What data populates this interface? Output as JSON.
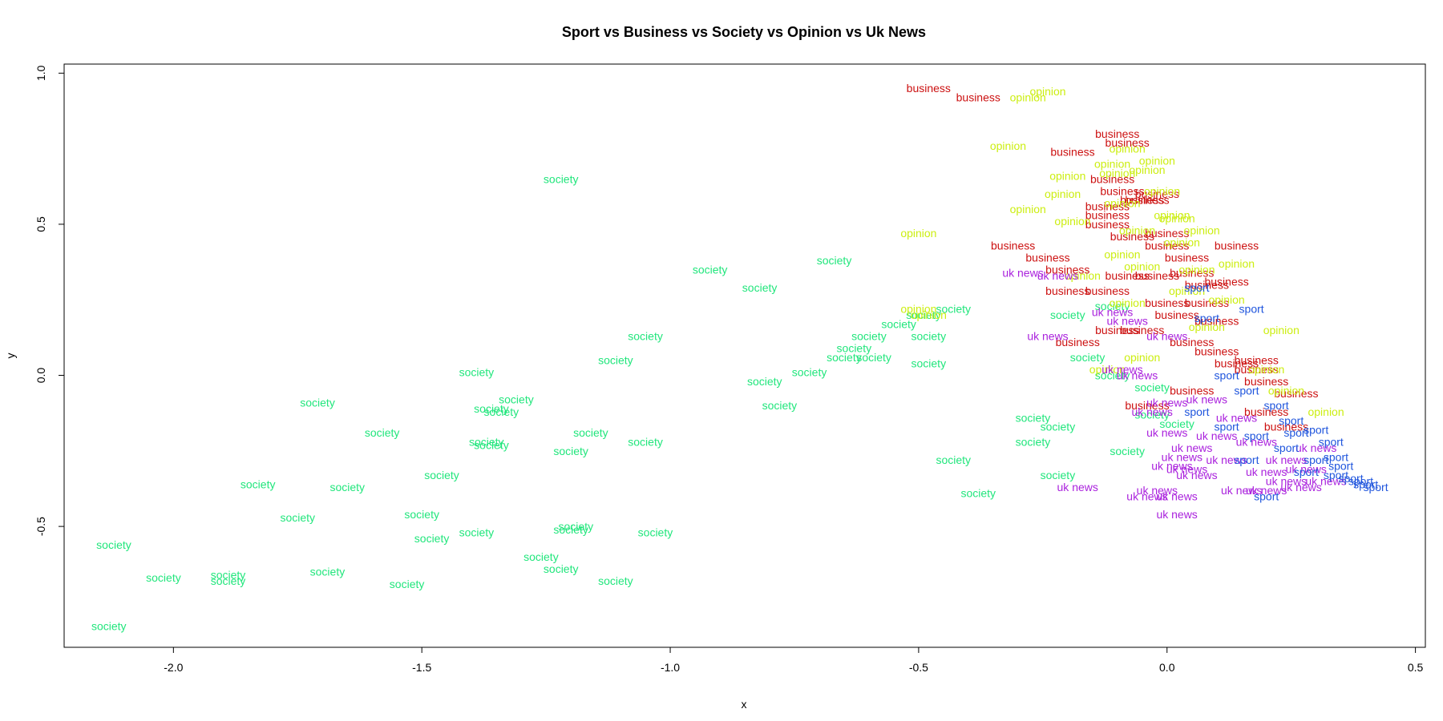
{
  "chart_data": {
    "type": "scatter",
    "title": "Sport vs Business vs Society vs Opinion vs Uk News",
    "xlabel": "x",
    "ylabel": "y",
    "xlim": [
      -2.22,
      0.52
    ],
    "ylim": [
      -0.9,
      1.03
    ],
    "x_ticks": [
      -2.0,
      -1.5,
      -1.0,
      -0.5,
      0.0,
      0.5
    ],
    "y_ticks": [
      -0.5,
      0.0,
      0.5,
      1.0
    ],
    "x_tick_labels": [
      "-2.0",
      "-1.5",
      "-1.0",
      "-0.5",
      "0.0",
      "0.5"
    ],
    "y_tick_labels": [
      "-0.5",
      "0.0",
      "0.5",
      "1.0"
    ],
    "grid": false,
    "legend": "none",
    "marker": "text-label",
    "series": [
      {
        "label": "society",
        "color": "#21e67c",
        "points": [
          [
            -1.22,
            0.65
          ],
          [
            -0.92,
            0.35
          ],
          [
            -0.67,
            0.38
          ],
          [
            -0.82,
            0.29
          ],
          [
            -1.05,
            0.13
          ],
          [
            -1.11,
            0.05
          ],
          [
            -1.39,
            0.01
          ],
          [
            -1.71,
            -0.09
          ],
          [
            -1.31,
            -0.08
          ],
          [
            -1.36,
            -0.11
          ],
          [
            -1.34,
            -0.12
          ],
          [
            -1.58,
            -0.19
          ],
          [
            -1.16,
            -0.19
          ],
          [
            -1.05,
            -0.22
          ],
          [
            -1.37,
            -0.22
          ],
          [
            -1.36,
            -0.23
          ],
          [
            -1.2,
            -0.25
          ],
          [
            -1.83,
            -0.36
          ],
          [
            -1.65,
            -0.37
          ],
          [
            -1.46,
            -0.33
          ],
          [
            -1.75,
            -0.47
          ],
          [
            -1.5,
            -0.46
          ],
          [
            -1.19,
            -0.5
          ],
          [
            -1.2,
            -0.51
          ],
          [
            -1.03,
            -0.52
          ],
          [
            -1.39,
            -0.52
          ],
          [
            -1.48,
            -0.54
          ],
          [
            -2.12,
            -0.56
          ],
          [
            -1.26,
            -0.6
          ],
          [
            -1.22,
            -0.64
          ],
          [
            -2.02,
            -0.67
          ],
          [
            -1.89,
            -0.66
          ],
          [
            -1.89,
            -0.68
          ],
          [
            -1.69,
            -0.65
          ],
          [
            -1.53,
            -0.69
          ],
          [
            -1.11,
            -0.68
          ],
          [
            -2.13,
            -0.83
          ],
          [
            -0.54,
            0.17
          ],
          [
            -0.6,
            0.13
          ],
          [
            -0.63,
            0.09
          ],
          [
            -0.65,
            0.06
          ],
          [
            -0.59,
            0.06
          ],
          [
            -0.72,
            0.01
          ],
          [
            -0.81,
            -0.02
          ],
          [
            -0.78,
            -0.1
          ],
          [
            -0.48,
            0.13
          ],
          [
            -0.48,
            0.04
          ],
          [
            -0.43,
            0.22
          ],
          [
            -0.49,
            0.2
          ],
          [
            -0.27,
            -0.14
          ],
          [
            -0.22,
            -0.17
          ],
          [
            -0.27,
            -0.22
          ],
          [
            -0.43,
            -0.28
          ],
          [
            -0.22,
            -0.33
          ],
          [
            -0.38,
            -0.39
          ],
          [
            -0.08,
            -0.25
          ],
          [
            -0.16,
            0.06
          ],
          [
            -0.2,
            0.2
          ],
          [
            -0.11,
            0.23
          ],
          [
            -0.03,
            -0.04
          ],
          [
            -0.03,
            -0.13
          ],
          [
            0.02,
            -0.16
          ],
          [
            -0.11,
            0.0
          ]
        ]
      },
      {
        "label": "business",
        "color": "#cc1111",
        "points": [
          [
            -0.48,
            0.95
          ],
          [
            -0.38,
            0.92
          ],
          [
            -0.1,
            0.8
          ],
          [
            -0.08,
            0.77
          ],
          [
            -0.19,
            0.74
          ],
          [
            -0.11,
            0.65
          ],
          [
            -0.09,
            0.61
          ],
          [
            -0.02,
            0.6
          ],
          [
            -0.05,
            0.58
          ],
          [
            -0.12,
            0.56
          ],
          [
            -0.04,
            0.58
          ],
          [
            -0.12,
            0.53
          ],
          [
            -0.12,
            0.5
          ],
          [
            0.0,
            0.47
          ],
          [
            -0.31,
            0.43
          ],
          [
            -0.24,
            0.39
          ],
          [
            -0.2,
            0.35
          ],
          [
            -0.08,
            0.33
          ],
          [
            -0.02,
            0.33
          ],
          [
            -0.12,
            0.28
          ],
          [
            -0.2,
            0.28
          ],
          [
            0.05,
            0.34
          ],
          [
            0.12,
            0.31
          ],
          [
            0.08,
            0.24
          ],
          [
            0.0,
            0.24
          ],
          [
            0.02,
            0.2
          ],
          [
            0.1,
            0.18
          ],
          [
            -0.1,
            0.15
          ],
          [
            -0.05,
            0.15
          ],
          [
            -0.18,
            0.11
          ],
          [
            0.05,
            0.11
          ],
          [
            0.1,
            0.08
          ],
          [
            0.14,
            0.04
          ],
          [
            0.18,
            0.02
          ],
          [
            0.2,
            -0.02
          ],
          [
            0.26,
            -0.06
          ],
          [
            -0.04,
            -0.1
          ],
          [
            0.05,
            -0.05
          ],
          [
            0.24,
            -0.17
          ],
          [
            0.14,
            0.43
          ],
          [
            0.0,
            0.43
          ],
          [
            -0.07,
            0.46
          ],
          [
            0.04,
            0.39
          ],
          [
            0.18,
            0.05
          ],
          [
            0.08,
            0.3
          ],
          [
            0.2,
            -0.12
          ]
        ]
      },
      {
        "label": "opinion",
        "color": "#ccee11",
        "points": [
          [
            -0.24,
            0.94
          ],
          [
            -0.28,
            0.92
          ],
          [
            -0.32,
            0.76
          ],
          [
            -0.08,
            0.75
          ],
          [
            -0.11,
            0.7
          ],
          [
            -0.04,
            0.68
          ],
          [
            -0.02,
            0.71
          ],
          [
            -0.1,
            0.67
          ],
          [
            -0.2,
            0.66
          ],
          [
            -0.21,
            0.6
          ],
          [
            -0.01,
            0.61
          ],
          [
            0.01,
            0.53
          ],
          [
            -0.28,
            0.55
          ],
          [
            -0.19,
            0.51
          ],
          [
            0.02,
            0.52
          ],
          [
            -0.09,
            0.57
          ],
          [
            -0.06,
            0.48
          ],
          [
            -0.5,
            0.47
          ],
          [
            -0.09,
            0.4
          ],
          [
            -0.17,
            0.33
          ],
          [
            -0.05,
            0.36
          ],
          [
            0.06,
            0.35
          ],
          [
            0.14,
            0.37
          ],
          [
            -0.5,
            0.22
          ],
          [
            -0.48,
            0.2
          ],
          [
            -0.08,
            0.24
          ],
          [
            0.12,
            0.25
          ],
          [
            0.08,
            0.16
          ],
          [
            -0.05,
            0.06
          ],
          [
            -0.12,
            0.02
          ],
          [
            0.23,
            0.15
          ],
          [
            0.2,
            0.02
          ],
          [
            0.24,
            -0.05
          ],
          [
            0.32,
            -0.12
          ],
          [
            0.03,
            0.44
          ],
          [
            0.07,
            0.48
          ],
          [
            0.04,
            0.28
          ]
        ]
      },
      {
        "label": "uk news",
        "color": "#aa22dd",
        "points": [
          [
            -0.29,
            0.34
          ],
          [
            -0.22,
            0.33
          ],
          [
            -0.24,
            0.13
          ],
          [
            -0.11,
            0.21
          ],
          [
            -0.08,
            0.18
          ],
          [
            0.0,
            0.13
          ],
          [
            -0.09,
            0.02
          ],
          [
            -0.06,
            0.0
          ],
          [
            0.0,
            -0.09
          ],
          [
            -0.03,
            -0.12
          ],
          [
            0.0,
            -0.19
          ],
          [
            0.05,
            -0.24
          ],
          [
            0.03,
            -0.27
          ],
          [
            0.01,
            -0.3
          ],
          [
            0.04,
            -0.31
          ],
          [
            -0.02,
            -0.38
          ],
          [
            0.02,
            -0.4
          ],
          [
            -0.04,
            -0.4
          ],
          [
            -0.18,
            -0.37
          ],
          [
            0.02,
            -0.46
          ],
          [
            0.15,
            -0.38
          ],
          [
            0.2,
            -0.38
          ],
          [
            0.24,
            -0.35
          ],
          [
            0.27,
            -0.37
          ],
          [
            0.32,
            -0.35
          ],
          [
            0.12,
            -0.28
          ],
          [
            0.18,
            -0.22
          ],
          [
            0.24,
            -0.28
          ],
          [
            0.3,
            -0.24
          ],
          [
            0.1,
            -0.2
          ],
          [
            0.2,
            -0.32
          ],
          [
            0.14,
            -0.14
          ],
          [
            0.08,
            -0.08
          ],
          [
            0.06,
            -0.33
          ],
          [
            0.28,
            -0.31
          ]
        ]
      },
      {
        "label": "sport",
        "color": "#1f55dd",
        "points": [
          [
            0.06,
            0.29
          ],
          [
            0.17,
            0.22
          ],
          [
            0.08,
            0.19
          ],
          [
            0.12,
            0.0
          ],
          [
            0.16,
            -0.05
          ],
          [
            0.22,
            -0.1
          ],
          [
            0.25,
            -0.15
          ],
          [
            0.3,
            -0.18
          ],
          [
            0.33,
            -0.22
          ],
          [
            0.34,
            -0.27
          ],
          [
            0.35,
            -0.3
          ],
          [
            0.37,
            -0.34
          ],
          [
            0.4,
            -0.36
          ],
          [
            0.42,
            -0.37
          ],
          [
            0.2,
            -0.4
          ],
          [
            0.28,
            -0.32
          ],
          [
            0.3,
            -0.28
          ],
          [
            0.24,
            -0.24
          ],
          [
            0.18,
            -0.2
          ],
          [
            0.12,
            -0.17
          ],
          [
            0.06,
            -0.12
          ],
          [
            0.16,
            -0.28
          ],
          [
            0.34,
            -0.33
          ],
          [
            0.39,
            -0.35
          ],
          [
            0.26,
            -0.19
          ]
        ]
      }
    ]
  }
}
